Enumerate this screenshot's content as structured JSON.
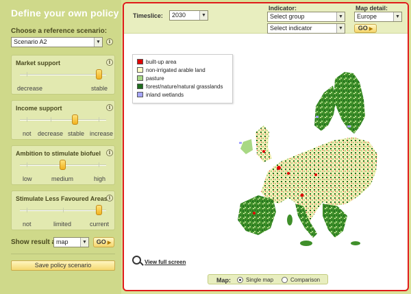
{
  "left": {
    "title": "Define your own policy",
    "reference_label": "Choose a reference scenario:",
    "reference_value": "Scenario A2",
    "sliders": [
      {
        "title": "Market support",
        "labels": [
          "decrease",
          "stable"
        ],
        "selected": 1
      },
      {
        "title": "Income support",
        "labels": [
          "not",
          "decrease",
          "stable",
          "increase"
        ],
        "selected": 2
      },
      {
        "title": "Ambition to stimulate biofuel",
        "labels": [
          "low",
          "medium",
          "high"
        ],
        "selected": 1
      },
      {
        "title": "Stimulate Less Favoured Areas",
        "labels": [
          "not",
          "limited",
          "current"
        ],
        "selected": 2
      }
    ],
    "show_result_label": "Show result as",
    "show_result_value": "map",
    "go_label": "GO",
    "save_label": "Save policy scenario"
  },
  "toolbar": {
    "timeslice_label": "Timeslice:",
    "timeslice_value": "2030",
    "indicator_label": "Indicator:",
    "group_value": "Select group",
    "indicator_value": "Select indicator",
    "map_detail_label": "Map detail:",
    "map_detail_value": "Europe",
    "go_label": "GO"
  },
  "legend": [
    {
      "label": "built-up area",
      "color": "#e00000"
    },
    {
      "label": "non-irrigated arable land",
      "color": "#ffffc8"
    },
    {
      "label": "pasture",
      "color": "#a8d884"
    },
    {
      "label": "forest/nature/natural grasslands",
      "color": "#1e6e1e"
    },
    {
      "label": "inland wetlands",
      "color": "#a6a6ff"
    }
  ],
  "view_full_screen": "View full screen",
  "mapbar": {
    "label": "Map:",
    "single": "Single map",
    "comparison": "Comparison",
    "selected": "single"
  }
}
